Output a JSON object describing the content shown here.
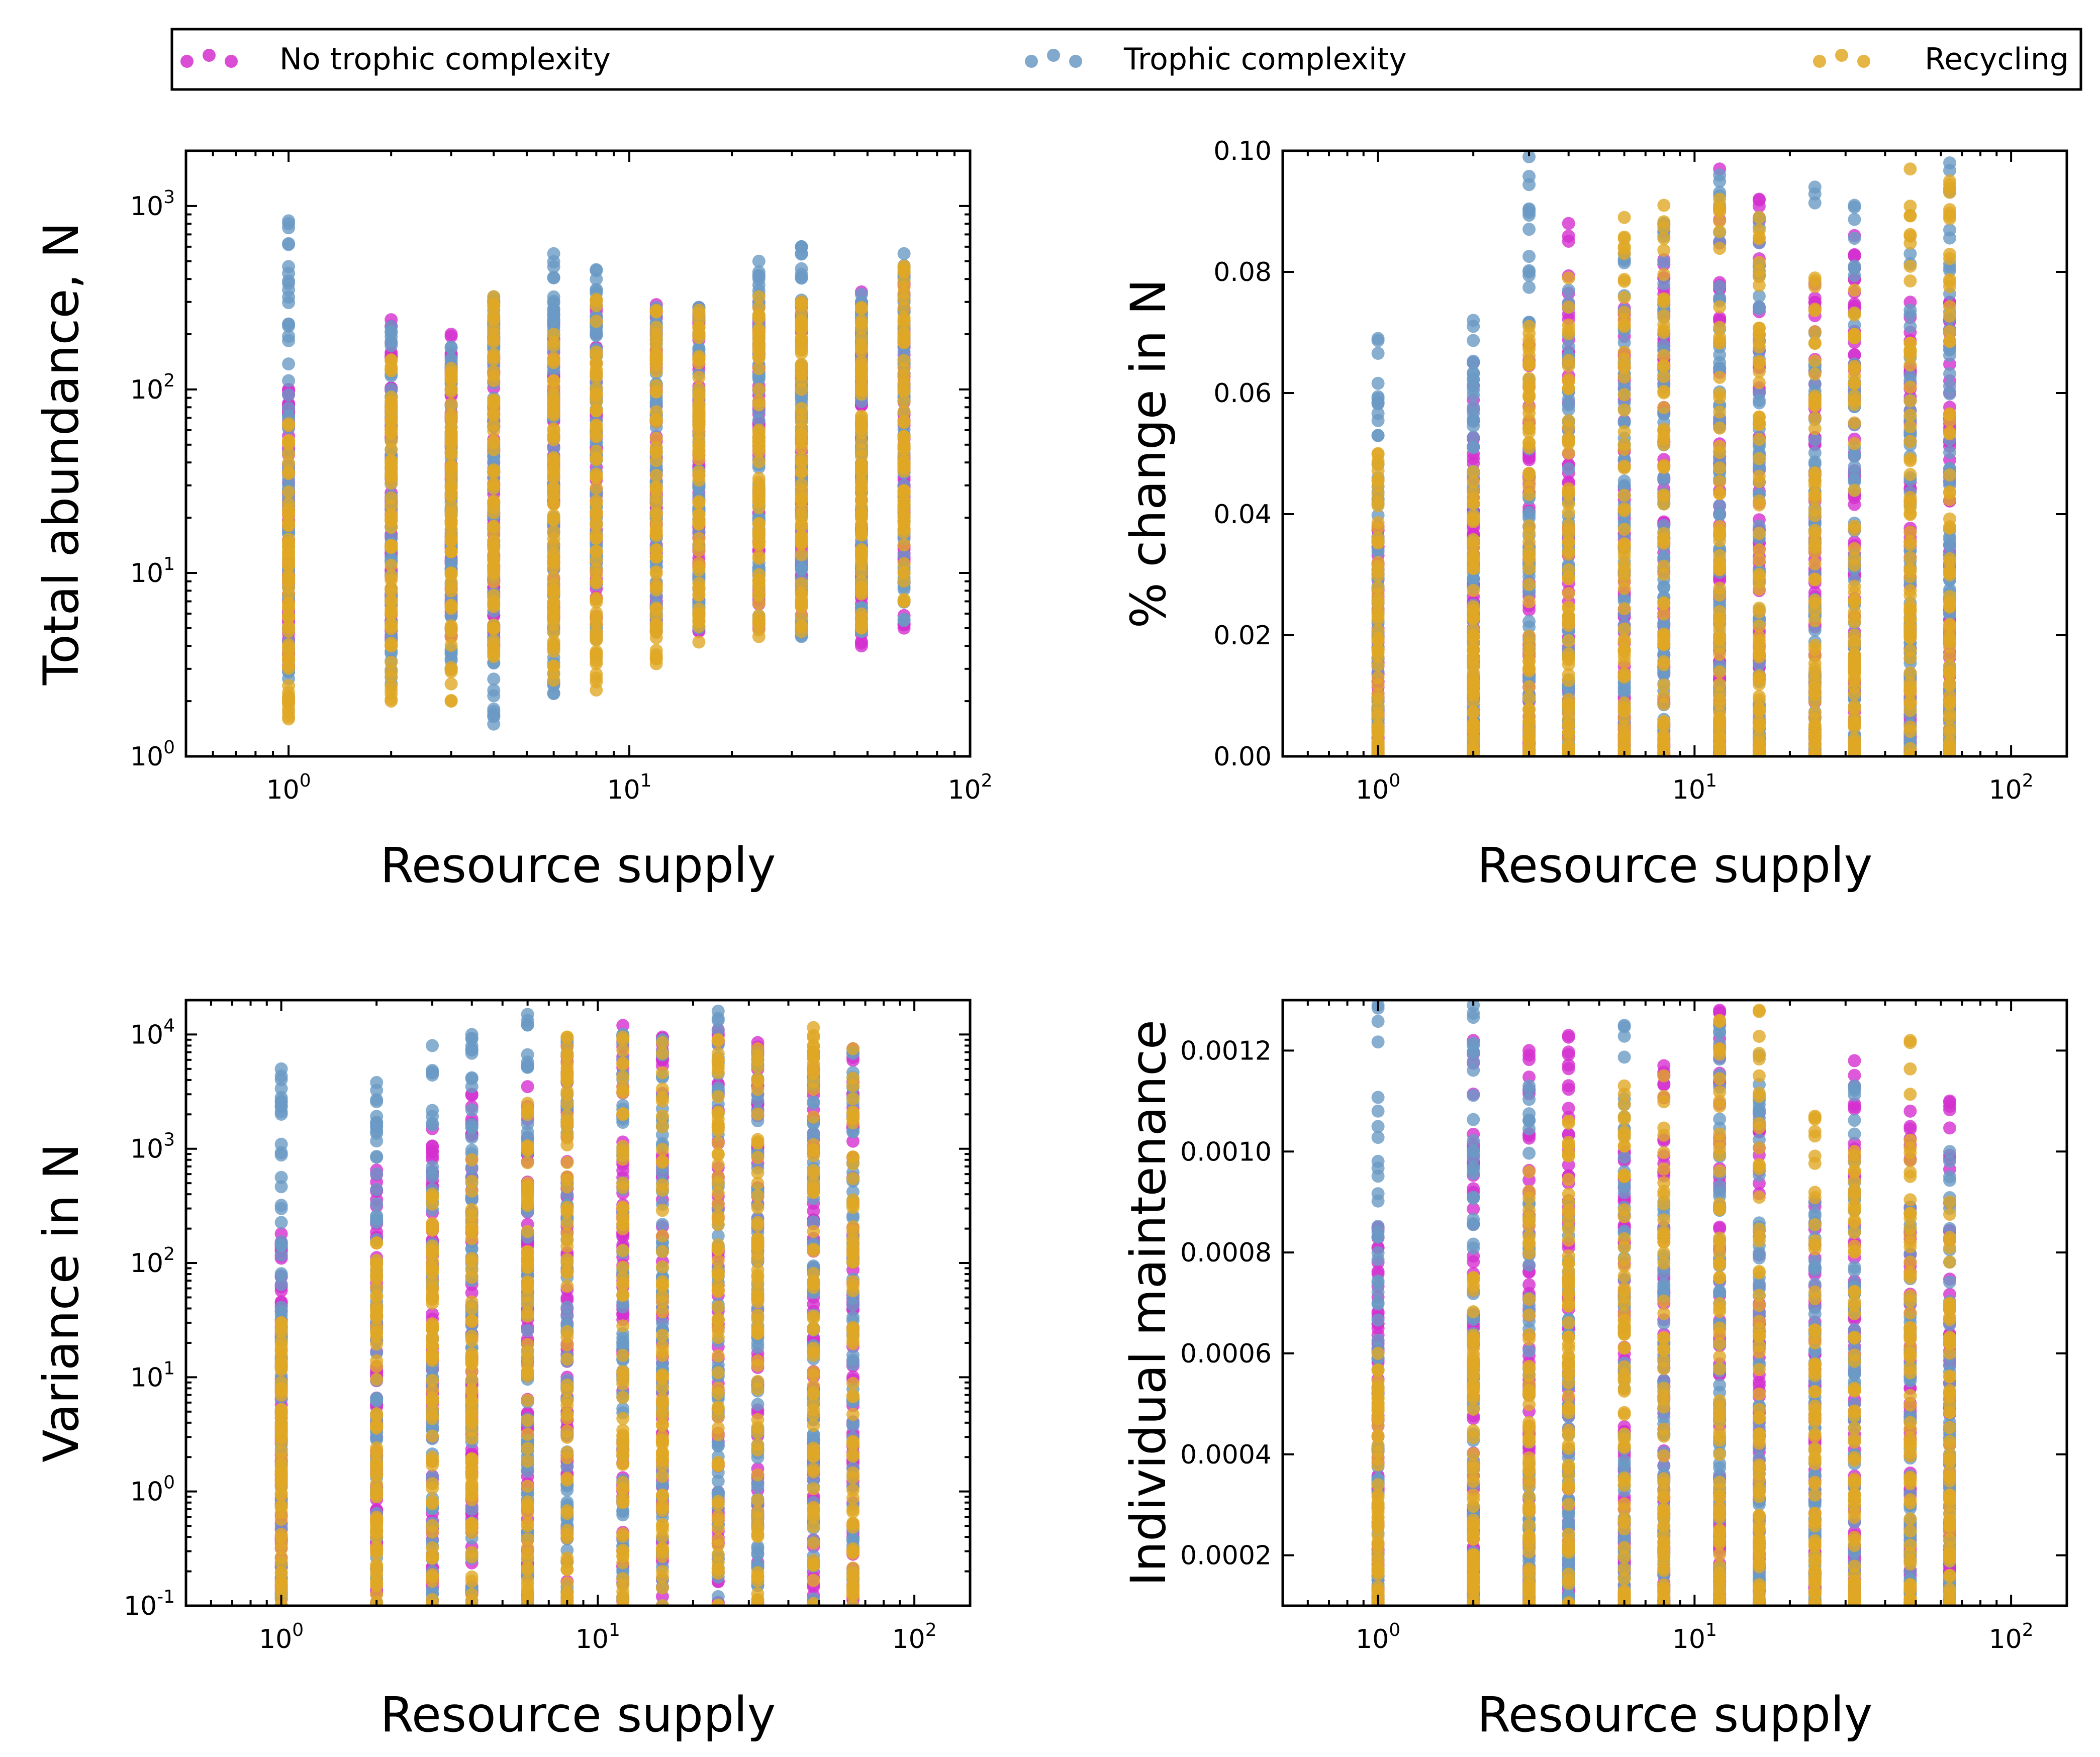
{
  "legend": [
    {
      "label": "No trophic complexity",
      "color": "#d42fcf"
    },
    {
      "label": "Trophic complexity",
      "color": "#6a9ac4"
    },
    {
      "label": "Recycling",
      "color": "#e0a826"
    }
  ],
  "chart_data": [
    {
      "type": "scatter",
      "xlabel": "Resource supply",
      "ylabel": "Total abundance, N",
      "xscale": "log",
      "yscale": "log",
      "xlim": [
        0.5,
        100
      ],
      "ylim": [
        1,
        2000
      ],
      "xticks": [
        {
          "v": 1,
          "m": "10",
          "e": "0"
        },
        {
          "v": 10,
          "m": "10",
          "e": "1"
        },
        {
          "v": 100,
          "m": "10",
          "e": "2"
        }
      ],
      "yticks": [
        {
          "v": 1,
          "m": "10",
          "e": "0"
        },
        {
          "v": 10,
          "m": "10",
          "e": "1"
        },
        {
          "v": 100,
          "m": "10",
          "e": "2"
        },
        {
          "v": 1000,
          "m": "10",
          "e": "3"
        }
      ],
      "x": [
        1,
        2,
        3,
        4,
        6,
        8,
        12,
        16,
        24,
        32,
        48,
        64
      ],
      "series": [
        {
          "legend_index": 0,
          "min": [
            3,
            4,
            4.5,
            4,
            5,
            4.5,
            4.8,
            4.8,
            5,
            5,
            4,
            5
          ],
          "max": [
            100,
            240,
            200,
            230,
            240,
            280,
            290,
            280,
            300,
            300,
            340,
            420
          ]
        },
        {
          "legend_index": 1,
          "min": [
            2,
            2.5,
            3,
            1.5,
            2.2,
            3.5,
            5,
            5,
            5.5,
            4.5,
            4.8,
            5.5
          ],
          "max": [
            830,
            220,
            170,
            320,
            550,
            450,
            280,
            280,
            500,
            600,
            330,
            550
          ]
        },
        {
          "legend_index": 2,
          "min": [
            1.6,
            2,
            2,
            3.5,
            2.6,
            2.3,
            3.2,
            4.2,
            4.5,
            4.8,
            5,
            7
          ],
          "max": [
            65,
            145,
            130,
            320,
            200,
            310,
            270,
            270,
            320,
            300,
            280,
            470
          ]
        }
      ]
    },
    {
      "type": "scatter",
      "xlabel": "Resource supply",
      "ylabel": "% change in N",
      "xscale": "log",
      "yscale": "linear",
      "xlim": [
        0.5,
        150
      ],
      "ylim": [
        0,
        0.1
      ],
      "xticks": [
        {
          "v": 1,
          "m": "10",
          "e": "0"
        },
        {
          "v": 10,
          "m": "10",
          "e": "1"
        },
        {
          "v": 100,
          "m": "10",
          "e": "2"
        }
      ],
      "yticks": [
        {
          "v": 0,
          "t": "0.00"
        },
        {
          "v": 0.02,
          "t": "0.02"
        },
        {
          "v": 0.04,
          "t": "0.04"
        },
        {
          "v": 0.06,
          "t": "0.06"
        },
        {
          "v": 0.08,
          "t": "0.08"
        },
        {
          "v": 0.1,
          "t": "0.10"
        }
      ],
      "x": [
        1,
        2,
        3,
        4,
        6,
        8,
        12,
        16,
        24,
        32,
        48,
        64
      ],
      "series": [
        {
          "legend_index": 0,
          "min": [
            0,
            0,
            0,
            0,
            0,
            0,
            0,
            0,
            0,
            0,
            0,
            0
          ],
          "max": [
            0.038,
            0.065,
            0.068,
            0.088,
            0.074,
            0.082,
            0.097,
            0.092,
            0.078,
            0.086,
            0.075,
            0.075
          ]
        },
        {
          "legend_index": 1,
          "min": [
            0,
            0,
            0,
            0,
            0,
            0,
            0,
            0,
            0,
            0,
            0,
            0
          ],
          "max": [
            0.069,
            0.072,
            0.099,
            0.077,
            0.083,
            0.088,
            0.096,
            0.089,
            0.094,
            0.091,
            0.083,
            0.098
          ]
        },
        {
          "legend_index": 2,
          "min": [
            0,
            0,
            0,
            0,
            0,
            0,
            0,
            0,
            0,
            0,
            0,
            0
          ],
          "max": [
            0.05,
            0.047,
            0.071,
            0.079,
            0.089,
            0.091,
            0.092,
            0.089,
            0.079,
            0.077,
            0.097,
            0.095
          ]
        }
      ]
    },
    {
      "type": "scatter",
      "xlabel": "Resource supply",
      "ylabel": "Variance in N",
      "xscale": "log",
      "yscale": "log",
      "xlim": [
        0.5,
        150
      ],
      "ylim": [
        0.1,
        20000
      ],
      "xticks": [
        {
          "v": 1,
          "m": "10",
          "e": "0"
        },
        {
          "v": 10,
          "m": "10",
          "e": "1"
        },
        {
          "v": 100,
          "m": "10",
          "e": "2"
        }
      ],
      "yticks": [
        {
          "v": 0.1,
          "m": "10",
          "e": "-1"
        },
        {
          "v": 1,
          "m": "10",
          "e": "0"
        },
        {
          "v": 10,
          "m": "10",
          "e": "1"
        },
        {
          "v": 100,
          "m": "10",
          "e": "2"
        },
        {
          "v": 1000,
          "m": "10",
          "e": "3"
        },
        {
          "v": 10000,
          "m": "10",
          "e": "4"
        }
      ],
      "x": [
        1,
        2,
        3,
        4,
        6,
        8,
        12,
        16,
        24,
        32,
        48,
        64
      ],
      "series": [
        {
          "legend_index": 0,
          "min": [
            0.1,
            0.1,
            0.1,
            0.1,
            0.1,
            0.1,
            0.1,
            0.1,
            0.1,
            0.1,
            0.1,
            0.1
          ],
          "max": [
            180,
            650,
            1500,
            3000,
            3500,
            8000,
            12000,
            9500,
            11000,
            8500,
            7000,
            7500
          ]
        },
        {
          "legend_index": 1,
          "min": [
            0.1,
            0.1,
            0.1,
            0.1,
            0.1,
            0.1,
            0.1,
            0.1,
            0.1,
            0.1,
            0.1,
            0.1
          ],
          "max": [
            5000,
            3800,
            8000,
            10000,
            15000,
            9000,
            10000,
            9000,
            16000,
            7000,
            7000,
            7000
          ]
        },
        {
          "legend_index": 2,
          "min": [
            0.1,
            0.1,
            0.1,
            0.1,
            0.1,
            0.1,
            0.1,
            0.1,
            0.1,
            0.1,
            0.1,
            0.1
          ],
          "max": [
            30,
            150,
            400,
            800,
            2500,
            9500,
            9500,
            8500,
            9000,
            7500,
            11500,
            7500
          ]
        }
      ]
    },
    {
      "type": "scatter",
      "xlabel": "Resource supply",
      "ylabel": "Individual maintenance",
      "xscale": "log",
      "yscale": "linear",
      "xlim": [
        0.5,
        150
      ],
      "ylim": [
        0.0001,
        0.0013
      ],
      "xticks": [
        {
          "v": 1,
          "m": "10",
          "e": "0"
        },
        {
          "v": 10,
          "m": "10",
          "e": "1"
        },
        {
          "v": 100,
          "m": "10",
          "e": "2"
        }
      ],
      "yticks": [
        {
          "v": 0.0002,
          "t": "0.0002"
        },
        {
          "v": 0.0004,
          "t": "0.0004"
        },
        {
          "v": 0.0006,
          "t": "0.0006"
        },
        {
          "v": 0.0008,
          "t": "0.0008"
        },
        {
          "v": 0.001,
          "t": "0.0010"
        },
        {
          "v": 0.0012,
          "t": "0.0012"
        }
      ],
      "x": [
        1,
        2,
        3,
        4,
        6,
        8,
        12,
        16,
        24,
        32,
        48,
        64
      ],
      "series": [
        {
          "legend_index": 0,
          "min": [
            0.0001,
            0.0001,
            0.0001,
            0.0001,
            0.0001,
            0.0001,
            0.0001,
            0.0001,
            0.0001,
            0.0001,
            0.0001,
            0.0001
          ],
          "max": [
            0.00085,
            0.00122,
            0.0012,
            0.00123,
            0.001,
            0.00117,
            0.00128,
            0.00108,
            0.0009,
            0.00118,
            0.00108,
            0.0011
          ]
        },
        {
          "legend_index": 1,
          "min": [
            0.0001,
            0.0001,
            0.0001,
            0.0001,
            0.0001,
            0.0001,
            0.0001,
            0.0001,
            0.0001,
            0.0001,
            0.0001,
            0.0001
          ],
          "max": [
            0.00129,
            0.00129,
            0.00113,
            0.0009,
            0.00125,
            0.0009,
            0.00125,
            0.00119,
            0.0009,
            0.00113,
            0.00089,
            0.001
          ]
        },
        {
          "legend_index": 2,
          "min": [
            0.0001,
            0.0001,
            0.0001,
            0.0001,
            0.0001,
            0.0001,
            0.0001,
            0.0001,
            0.0001,
            0.0001,
            0.0001,
            0.0001
          ],
          "max": [
            0.0006,
            0.00075,
            0.00096,
            0.00106,
            0.00113,
            0.00115,
            0.00126,
            0.00128,
            0.00107,
            0.001,
            0.00122,
            0.0009
          ]
        }
      ]
    }
  ]
}
